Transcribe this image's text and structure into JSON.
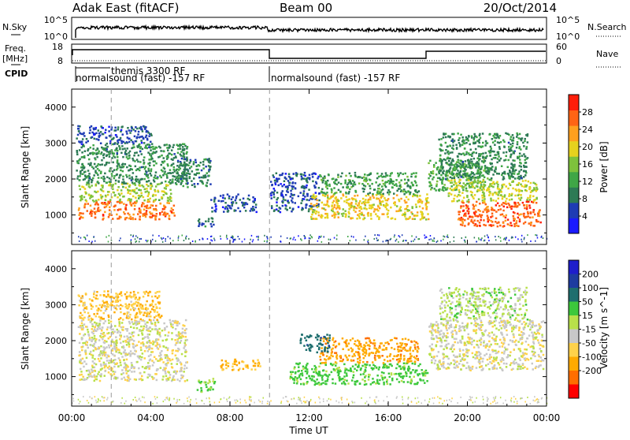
{
  "header": {
    "title": "Adak East (fitACF)",
    "beam": "Beam 00",
    "date": "20/Oct/2014"
  },
  "summary_panels": {
    "nsky": {
      "label": "N.Sky",
      "left_ticks": [
        "10^5",
        "10^0"
      ],
      "right_label": "N.Search",
      "right_ticks": [
        "10^5",
        "10^0"
      ]
    },
    "freq": {
      "label_line1": "Freq.",
      "label_line2": "[MHz]",
      "left_ticks": [
        "18",
        "8"
      ],
      "right_label": "Nave",
      "right_ticks": [
        "60",
        "0"
      ]
    },
    "cpid": {
      "label": "CPID",
      "modes": [
        {
          "name": "normalsound (fast) -157 RF",
          "start": "00:00"
        },
        {
          "name": "themis 3300 RF",
          "start": "02:00"
        },
        {
          "name": "normalsound (fast) -157 RF",
          "start": "10:00"
        }
      ]
    }
  },
  "colors": {
    "power_scale": [
      "#1a1aff",
      "#1e3cb4",
      "#2d7a55",
      "#3fa646",
      "#7ec23c",
      "#e6d21e",
      "#ffa01e",
      "#ff6414",
      "#ff1e0a"
    ],
    "velocity_scale": [
      "#ff0000",
      "#ff6e00",
      "#ffaa00",
      "#ffd24a",
      "#c8c8c8",
      "#b8e04a",
      "#3cc83c",
      "#1e6e6e",
      "#1e3ca0",
      "#1e1ecc"
    ]
  },
  "chart_data": [
    {
      "type": "heatmap",
      "name_of_panel": "power",
      "ylabel": "Slant Range [km]",
      "yticks": [
        1000,
        2000,
        3000,
        4000
      ],
      "ylim": [
        180,
        4500
      ],
      "xlim": [
        "00:00",
        "00:00"
      ],
      "colorbar_label": "Power [dB]",
      "colorbar_ticks": [
        4,
        8,
        12,
        16,
        20,
        24,
        28
      ],
      "colorbar_range": [
        0,
        32
      ],
      "regions": [
        {
          "t0": 0.3,
          "t1": 5.2,
          "r0": 900,
          "r1": 1400,
          "value": 26
        },
        {
          "t0": 0.3,
          "t1": 5.0,
          "r0": 1400,
          "r1": 1900,
          "value": 17
        },
        {
          "t0": 0.2,
          "t1": 5.8,
          "r0": 1900,
          "r1": 3000,
          "value": 10
        },
        {
          "t0": 0.2,
          "t1": 4.0,
          "r0": 3000,
          "r1": 3500,
          "value": 6
        },
        {
          "t0": 5.2,
          "t1": 7.0,
          "r0": 1800,
          "r1": 2600,
          "value": 9
        },
        {
          "t0": 6.3,
          "t1": 7.2,
          "r0": 700,
          "r1": 1000,
          "value": 8
        },
        {
          "t0": 7.0,
          "t1": 9.3,
          "r0": 1100,
          "r1": 1600,
          "value": 6
        },
        {
          "t0": 10.0,
          "t1": 12.5,
          "r0": 1100,
          "r1": 2200,
          "value": 6
        },
        {
          "t0": 12.0,
          "t1": 18.0,
          "r0": 900,
          "r1": 1600,
          "value": 20
        },
        {
          "t0": 12.5,
          "t1": 17.5,
          "r0": 1600,
          "r1": 2200,
          "value": 12
        },
        {
          "t0": 18.0,
          "t1": 21.0,
          "r0": 1700,
          "r1": 2600,
          "value": 13
        },
        {
          "t0": 19.5,
          "t1": 23.7,
          "r0": 700,
          "r1": 1400,
          "value": 27
        },
        {
          "t0": 19.0,
          "t1": 23.5,
          "r0": 1400,
          "r1": 2000,
          "value": 18
        },
        {
          "t0": 18.5,
          "t1": 23.0,
          "r0": 2000,
          "r1": 3300,
          "value": 10
        }
      ]
    },
    {
      "type": "heatmap",
      "name_of_panel": "velocity",
      "ylabel": "Slant Range [km]",
      "yticks": [
        1000,
        2000,
        3000,
        4000
      ],
      "ylim": [
        180,
        4500
      ],
      "xlabel": "Time UT",
      "xticks": [
        "00:00",
        "04:00",
        "08:00",
        "12:00",
        "16:00",
        "20:00",
        "00:00"
      ],
      "colorbar_label": "Velocity [m s^-1]",
      "colorbar_ticks": [
        200,
        100,
        50,
        15,
        -15,
        -50,
        -100,
        -200
      ],
      "regions": [
        {
          "t0": 0.3,
          "t1": 5.8,
          "r0": 900,
          "r1": 2600,
          "value": 0
        },
        {
          "t0": 0.3,
          "t1": 4.5,
          "r0": 2600,
          "r1": 3400,
          "value": -40
        },
        {
          "t0": 6.3,
          "t1": 7.2,
          "r0": 600,
          "r1": 1000,
          "value": 60
        },
        {
          "t0": 7.5,
          "t1": 9.5,
          "r0": 1200,
          "r1": 1500,
          "value": -60
        },
        {
          "t0": 11.0,
          "t1": 18.0,
          "r0": 800,
          "r1": 1400,
          "value": 70
        },
        {
          "t0": 12.5,
          "t1": 17.5,
          "r0": 1400,
          "r1": 2100,
          "value": -80
        },
        {
          "t0": 11.5,
          "t1": 13.0,
          "r0": 1700,
          "r1": 2200,
          "value": 180
        },
        {
          "t0": 18.0,
          "t1": 23.8,
          "r0": 1200,
          "r1": 2600,
          "value": 0
        },
        {
          "t0": 18.5,
          "t1": 23.0,
          "r0": 2600,
          "r1": 3500,
          "value": 30
        }
      ]
    }
  ]
}
